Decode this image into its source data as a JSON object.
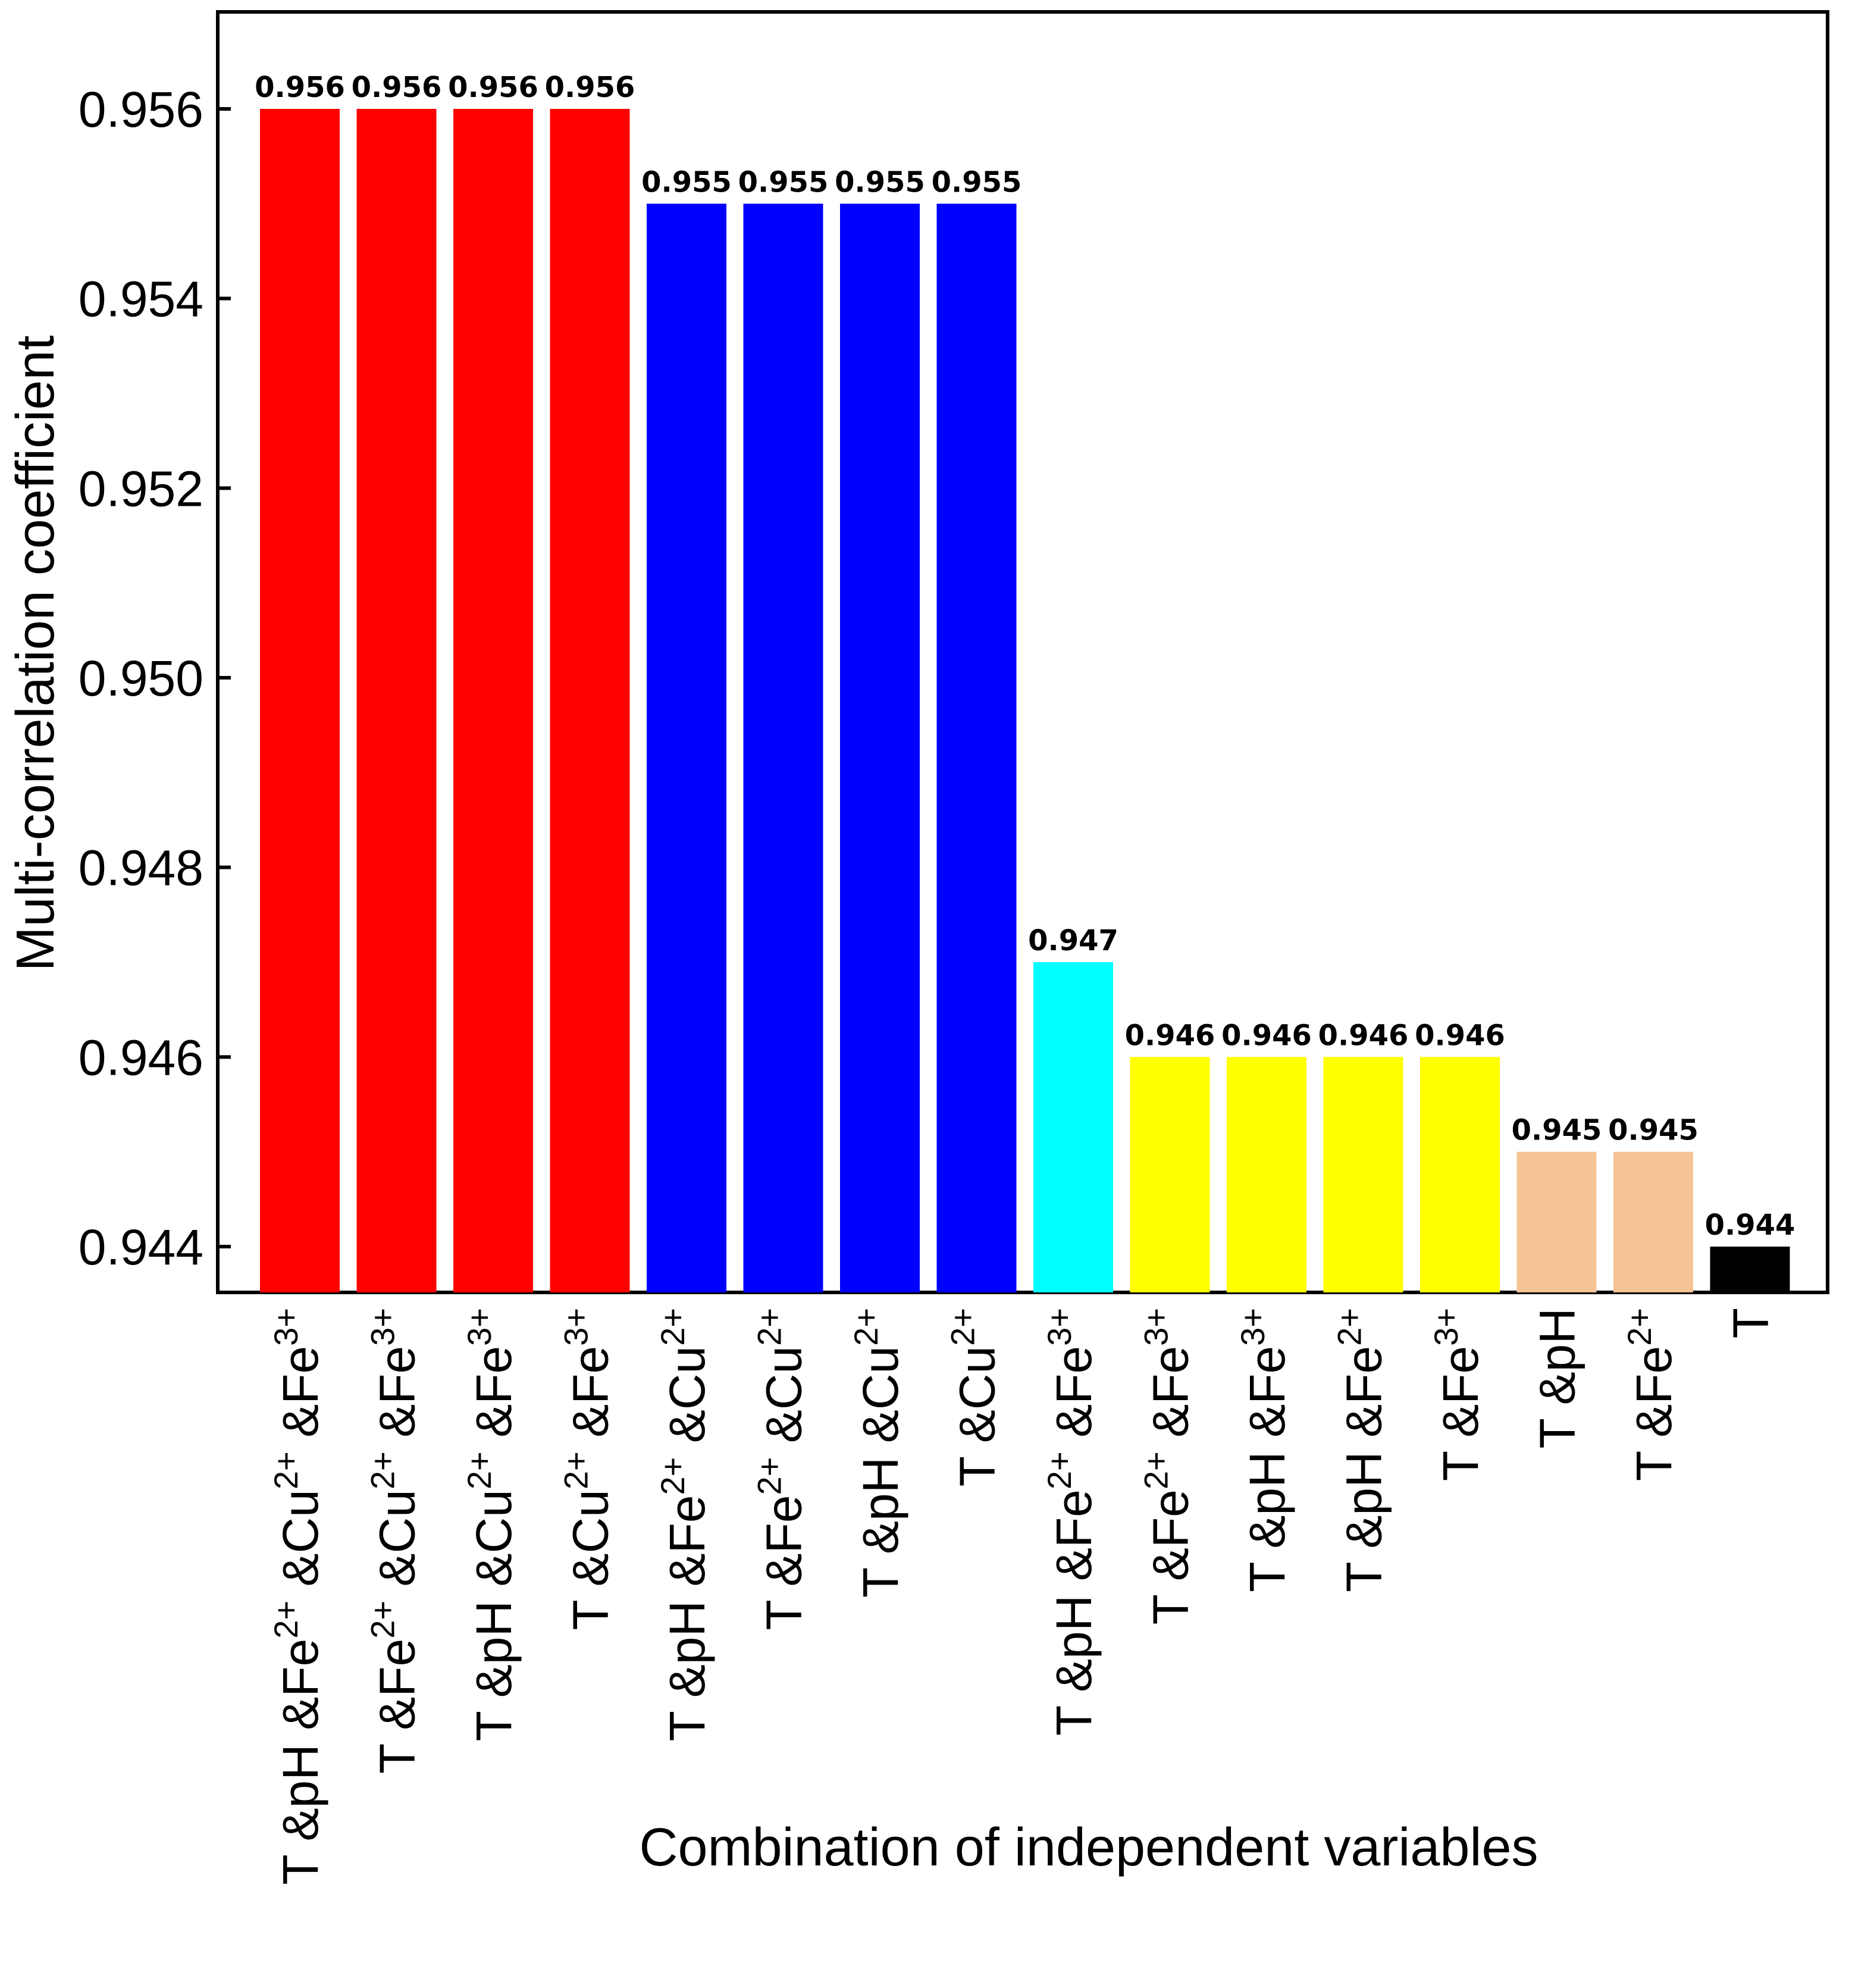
{
  "chart_data": {
    "type": "bar",
    "title": "",
    "xlabel": "Combination of independent variables",
    "ylabel": "Multi-correlation coefficient",
    "ylim": [
      0.9435,
      0.957
    ],
    "yticks": [
      "0.944",
      "0.946",
      "0.948",
      "0.950",
      "0.952",
      "0.954",
      "0.956"
    ],
    "grid": false,
    "legend": "none",
    "categories": [
      {
        "parts": [
          "T",
          " &pH &Fe",
          "2+",
          " &Cu",
          "2+",
          " &Fe",
          "3+"
        ]
      },
      {
        "parts": [
          "T",
          " &Fe",
          "2+",
          " &Cu",
          "2+",
          " &Fe",
          "3+"
        ]
      },
      {
        "parts": [
          "T",
          " &pH &Cu",
          "2+",
          " &Fe",
          "3+"
        ]
      },
      {
        "parts": [
          "T",
          " &Cu",
          "2+",
          " &Fe",
          "3+"
        ]
      },
      {
        "parts": [
          "T",
          " &pH &Fe",
          "2+",
          " &Cu",
          "2+"
        ]
      },
      {
        "parts": [
          "T",
          " &Fe",
          "2+",
          " &Cu",
          "2+"
        ]
      },
      {
        "parts": [
          "T",
          " &pH &Cu",
          "2+"
        ]
      },
      {
        "parts": [
          "T",
          " &Cu",
          "2+"
        ]
      },
      {
        "parts": [
          "T",
          " &pH &Fe",
          "2+",
          " &Fe",
          "3+"
        ]
      },
      {
        "parts": [
          "T",
          " &Fe",
          "2+",
          " &Fe",
          "3+"
        ]
      },
      {
        "parts": [
          "T",
          " &pH &Fe",
          "3+"
        ]
      },
      {
        "parts": [
          "T",
          " &pH &Fe",
          "2+"
        ]
      },
      {
        "parts": [
          "T",
          " &Fe",
          "3+"
        ]
      },
      {
        "parts": [
          "T",
          " &pH"
        ]
      },
      {
        "parts": [
          "T",
          " &Fe",
          "2+"
        ]
      },
      {
        "parts": [
          "T"
        ]
      }
    ],
    "values": [
      0.956,
      0.956,
      0.956,
      0.956,
      0.955,
      0.955,
      0.955,
      0.955,
      0.947,
      0.946,
      0.946,
      0.946,
      0.946,
      0.945,
      0.945,
      0.944
    ],
    "value_labels": [
      "0.956",
      "0.956",
      "0.956",
      "0.956",
      "0.955",
      "0.955",
      "0.955",
      "0.955",
      "0.947",
      "0.946",
      "0.946",
      "0.946",
      "0.946",
      "0.945",
      "0.945",
      "0.944"
    ],
    "colors": [
      "#ff0000",
      "#ff0000",
      "#ff0000",
      "#ff0000",
      "#0000ff",
      "#0000ff",
      "#0000ff",
      "#0000ff",
      "#00ffff",
      "#ffff00",
      "#ffff00",
      "#ffff00",
      "#ffff00",
      "#f6c397",
      "#f6c397",
      "#000000"
    ]
  }
}
